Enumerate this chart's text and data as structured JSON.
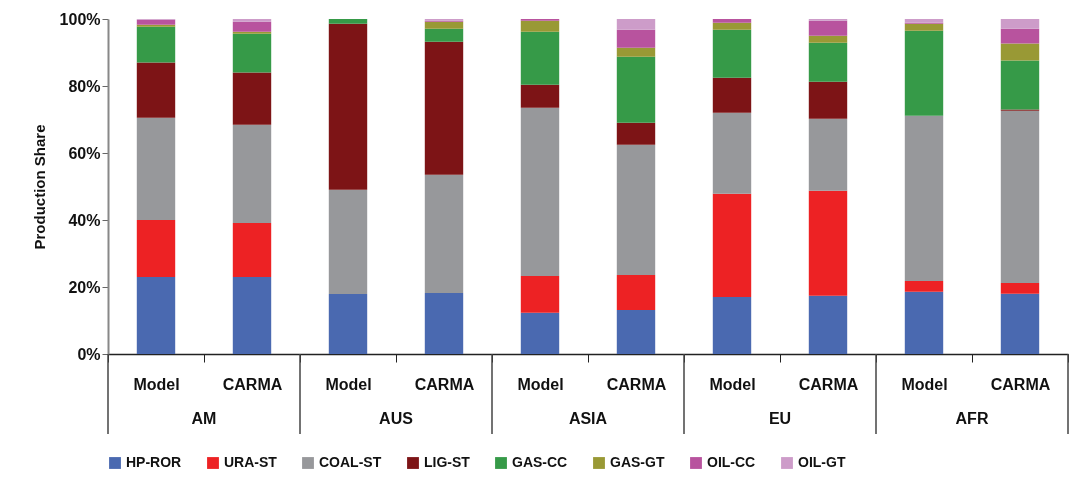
{
  "chart_data": {
    "type": "bar",
    "stacked": true,
    "ylabel": "Production Share",
    "categories": [
      "Model",
      "CARMA",
      "Model",
      "CARMA",
      "Model",
      "CARMA",
      "Model",
      "CARMA",
      "Model",
      "CARMA"
    ],
    "annotations": [
      "AM",
      "AUS",
      "ASIA",
      "EU",
      "AFR"
    ],
    "ylim": [
      0,
      100
    ],
    "yticks": [
      {
        "value": 0,
        "label": "0%"
      },
      {
        "value": 20,
        "label": "20%"
      },
      {
        "value": 40,
        "label": "40%"
      },
      {
        "value": 60,
        "label": "60%"
      },
      {
        "value": 80,
        "label": "80%"
      },
      {
        "value": 100,
        "label": "100%"
      }
    ],
    "grid": false,
    "legend": "bottom",
    "series": [
      {
        "name": "HP-ROR",
        "color": "#4a69b0",
        "values": [
          23,
          23,
          17.9,
          18.2,
          12.3,
          13.1,
          17,
          17.4,
          18.6,
          18
        ]
      },
      {
        "name": "URA-ST",
        "color": "#ed2224",
        "values": [
          17,
          16.1,
          0,
          0,
          11,
          10.5,
          30.8,
          31.3,
          3.2,
          3.2
        ]
      },
      {
        "name": "COAL-ST",
        "color": "#97989b",
        "values": [
          30.5,
          29.3,
          31.1,
          35.3,
          50.2,
          38.9,
          24.2,
          21.5,
          49.3,
          51.4
        ]
      },
      {
        "name": "LIG-ST",
        "color": "#7d1416",
        "values": [
          16.5,
          15.6,
          49.6,
          39.7,
          6.9,
          6.5,
          10.5,
          11.1,
          0,
          0.4
        ]
      },
      {
        "name": "GAS-CC",
        "color": "#369a48",
        "values": [
          10.7,
          11.6,
          1.4,
          3.9,
          15.8,
          19.7,
          14.3,
          11.6,
          25.4,
          14.6
        ]
      },
      {
        "name": "GAS-GT",
        "color": "#999935",
        "values": [
          0.6,
          0.6,
          0,
          2.1,
          3.3,
          2.7,
          2.1,
          2.1,
          2.1,
          5.1
        ]
      },
      {
        "name": "OIL-CC",
        "color": "#b8539e",
        "values": [
          1.5,
          3,
          0,
          0.3,
          0.5,
          5.4,
          1.1,
          4.5,
          0.3,
          4.4
        ]
      },
      {
        "name": "OIL-GT",
        "color": "#cd9cc9",
        "values": [
          0.2,
          0.8,
          0,
          0.5,
          0,
          3.2,
          0,
          0.5,
          1.1,
          2.9
        ]
      }
    ]
  }
}
